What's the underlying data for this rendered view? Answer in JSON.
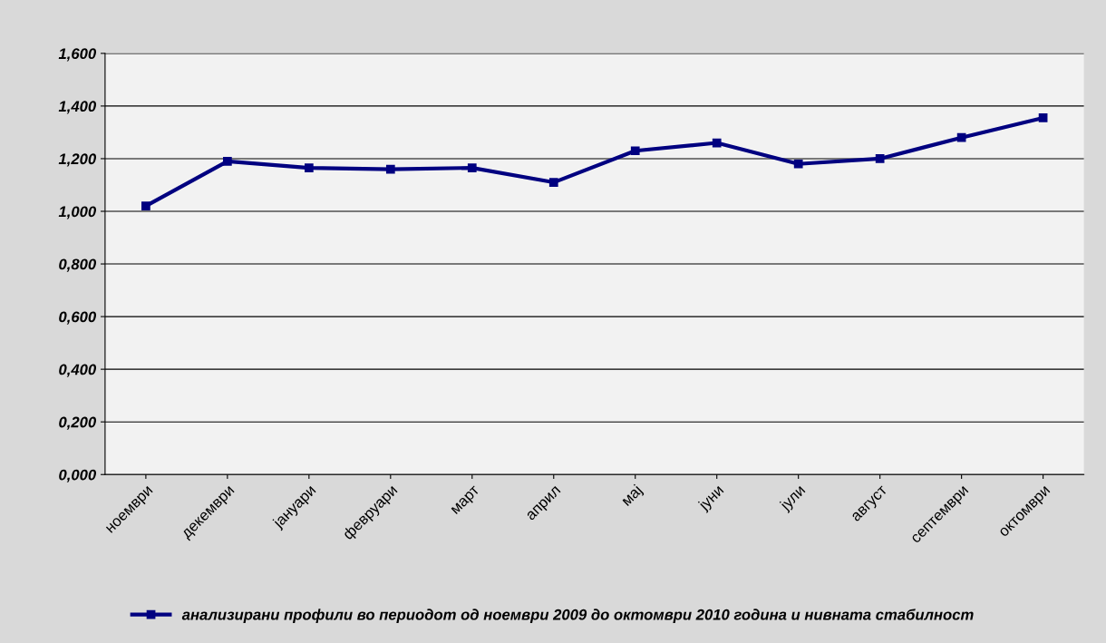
{
  "chart_data": {
    "type": "line",
    "categories": [
      "ноември",
      "декември",
      "јануари",
      "февруари",
      "март",
      "април",
      "мај",
      "јуни",
      "јули",
      "август",
      "септември",
      "октомври"
    ],
    "series": [
      {
        "name": "анализирани профили во периодот од ноември 2009 до октомври 2010 година и нивната стабилност",
        "color": "#000080",
        "values": [
          1.02,
          1.19,
          1.165,
          1.16,
          1.165,
          1.11,
          1.23,
          1.26,
          1.18,
          1.2,
          1.28,
          1.355
        ]
      }
    ],
    "ylim": [
      0,
      1.6
    ],
    "yticks": [
      {
        "value": 0,
        "label": "0,000"
      },
      {
        "value": 0.2,
        "label": "0,200"
      },
      {
        "value": 0.4,
        "label": "0,400"
      },
      {
        "value": 0.6,
        "label": "0,600"
      },
      {
        "value": 0.8,
        "label": "0,800"
      },
      {
        "value": 1.0,
        "label": "1,000"
      },
      {
        "value": 1.2,
        "label": "1,200"
      },
      {
        "value": 1.4,
        "label": "1,400"
      },
      {
        "value": 1.6,
        "label": "1,600"
      }
    ],
    "grid": "y",
    "legend": "bottom",
    "marker": "square",
    "line_style": "solid"
  }
}
